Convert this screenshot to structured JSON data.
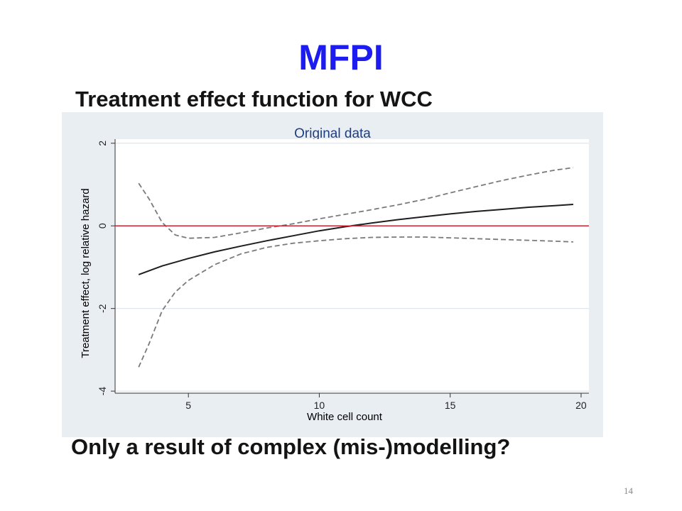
{
  "slide": {
    "title": "MFPI",
    "subtitle": "Treatment effect function for WCC",
    "bottom_text": "Only a result of complex (mis-)modelling?",
    "page_number": "14"
  },
  "chart_data": {
    "type": "line",
    "title": "Original data",
    "xlabel": "White cell count",
    "ylabel": "Treatment effect, log relative hazard",
    "xlim": [
      2.2,
      20.3
    ],
    "ylim": [
      -4.05,
      2.1
    ],
    "xticks": [
      5,
      10,
      15,
      20
    ],
    "yticks": [
      2,
      0,
      -2,
      -4
    ],
    "grid": true,
    "reference_line": {
      "y": 0,
      "color": "#cc2233"
    },
    "colors": {
      "title": "#1e3d80",
      "plot_bg": "#ffffff",
      "panel_bg": "#e9eef3",
      "grid": "#dbe4ec"
    },
    "series": [
      {
        "style": "solid",
        "color": "#1e1e1e",
        "points": [
          [
            3.1,
            -1.18
          ],
          [
            4,
            -0.97
          ],
          [
            5,
            -0.79
          ],
          [
            6,
            -0.63
          ],
          [
            7,
            -0.49
          ],
          [
            8,
            -0.36
          ],
          [
            9,
            -0.24
          ],
          [
            10,
            -0.12
          ],
          [
            11,
            -0.02
          ],
          [
            12,
            0.07
          ],
          [
            13,
            0.15
          ],
          [
            14,
            0.22
          ],
          [
            15,
            0.29
          ],
          [
            16,
            0.35
          ],
          [
            17,
            0.4
          ],
          [
            18,
            0.45
          ],
          [
            19,
            0.49
          ],
          [
            19.7,
            0.52
          ]
        ]
      },
      {
        "style": "dashed",
        "color": "#7a7a7a",
        "points": [
          [
            3.1,
            1.03
          ],
          [
            3.5,
            0.65
          ],
          [
            4,
            0.08
          ],
          [
            4.5,
            -0.22
          ],
          [
            5,
            -0.3
          ],
          [
            6,
            -0.28
          ],
          [
            7,
            -0.17
          ],
          [
            8,
            -0.05
          ],
          [
            9,
            0.05
          ],
          [
            10,
            0.17
          ],
          [
            11,
            0.28
          ],
          [
            12,
            0.39
          ],
          [
            13,
            0.51
          ],
          [
            14,
            0.64
          ],
          [
            15,
            0.8
          ],
          [
            16,
            0.95
          ],
          [
            17,
            1.1
          ],
          [
            18,
            1.23
          ],
          [
            19,
            1.35
          ],
          [
            19.7,
            1.41
          ]
        ]
      },
      {
        "style": "dashed",
        "color": "#7a7a7a",
        "points": [
          [
            3.1,
            -3.42
          ],
          [
            3.5,
            -2.85
          ],
          [
            4,
            -2.05
          ],
          [
            4.5,
            -1.6
          ],
          [
            5,
            -1.32
          ],
          [
            6,
            -0.94
          ],
          [
            7,
            -0.68
          ],
          [
            8,
            -0.52
          ],
          [
            9,
            -0.42
          ],
          [
            10,
            -0.36
          ],
          [
            11,
            -0.31
          ],
          [
            12,
            -0.28
          ],
          [
            13,
            -0.27
          ],
          [
            14,
            -0.27
          ],
          [
            15,
            -0.29
          ],
          [
            16,
            -0.31
          ],
          [
            17,
            -0.33
          ],
          [
            18,
            -0.35
          ],
          [
            19,
            -0.37
          ],
          [
            19.7,
            -0.39
          ]
        ]
      }
    ]
  }
}
